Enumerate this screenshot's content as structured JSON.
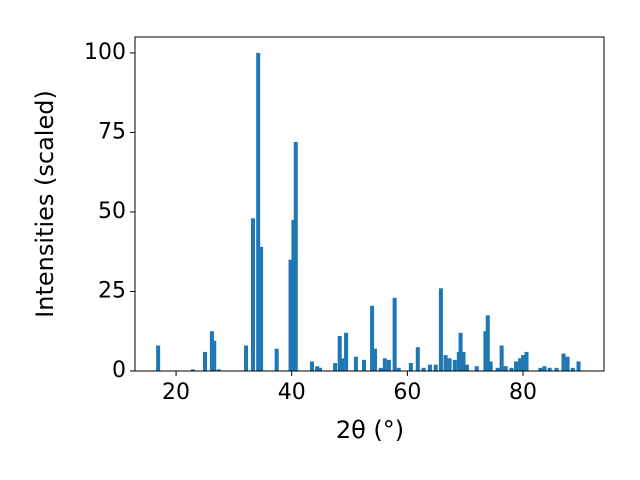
{
  "chart_data": {
    "type": "bar",
    "xlabel": "2θ (°)",
    "ylabel": "Intensities (scaled)",
    "color": "#1f77b4",
    "x": [
      16.9,
      22.9,
      25.0,
      26.2,
      26.6,
      27.4,
      32.1,
      33.3,
      34.2,
      34.7,
      37.4,
      39.8,
      40.3,
      40.7,
      43.5,
      44.4,
      44.9,
      47.5,
      48.3,
      48.7,
      49.4,
      51.1,
      52.5,
      53.9,
      54.4,
      55.4,
      56.1,
      56.8,
      57.8,
      58.5,
      60.6,
      61.8,
      62.8,
      63.9,
      64.9,
      65.8,
      66.6,
      67.3,
      68.2,
      68.9,
      69.2,
      69.7,
      70.3,
      72.0,
      73.5,
      73.9,
      74.4,
      75.6,
      76.3,
      77.0,
      78.0,
      78.8,
      79.5,
      80.0,
      80.6,
      83.0,
      83.7,
      84.6,
      85.8,
      87.0,
      87.7,
      88.6,
      89.6
    ],
    "values": [
      8,
      0.5,
      6,
      12.5,
      9.5,
      0.5,
      8,
      48,
      100,
      39,
      7,
      35,
      47.5,
      72,
      3,
      1.5,
      1,
      2.5,
      11,
      4,
      12,
      4.5,
      3.5,
      20.5,
      7,
      1,
      4,
      3.5,
      23,
      1,
      2.5,
      7.5,
      1,
      2,
      2,
      26,
      5,
      4,
      3.5,
      6,
      12,
      6,
      2,
      1.5,
      12.5,
      17.5,
      3,
      1,
      8,
      1.5,
      1,
      3,
      4,
      5,
      6,
      1,
      1.5,
      1,
      1,
      5.5,
      4.5,
      1,
      3
    ],
    "xlim": [
      12.9,
      94.0
    ],
    "ylim": [
      0,
      105
    ],
    "xticks": [
      20,
      40,
      60,
      80
    ],
    "yticks": [
      0,
      25,
      50,
      75,
      100
    ]
  }
}
